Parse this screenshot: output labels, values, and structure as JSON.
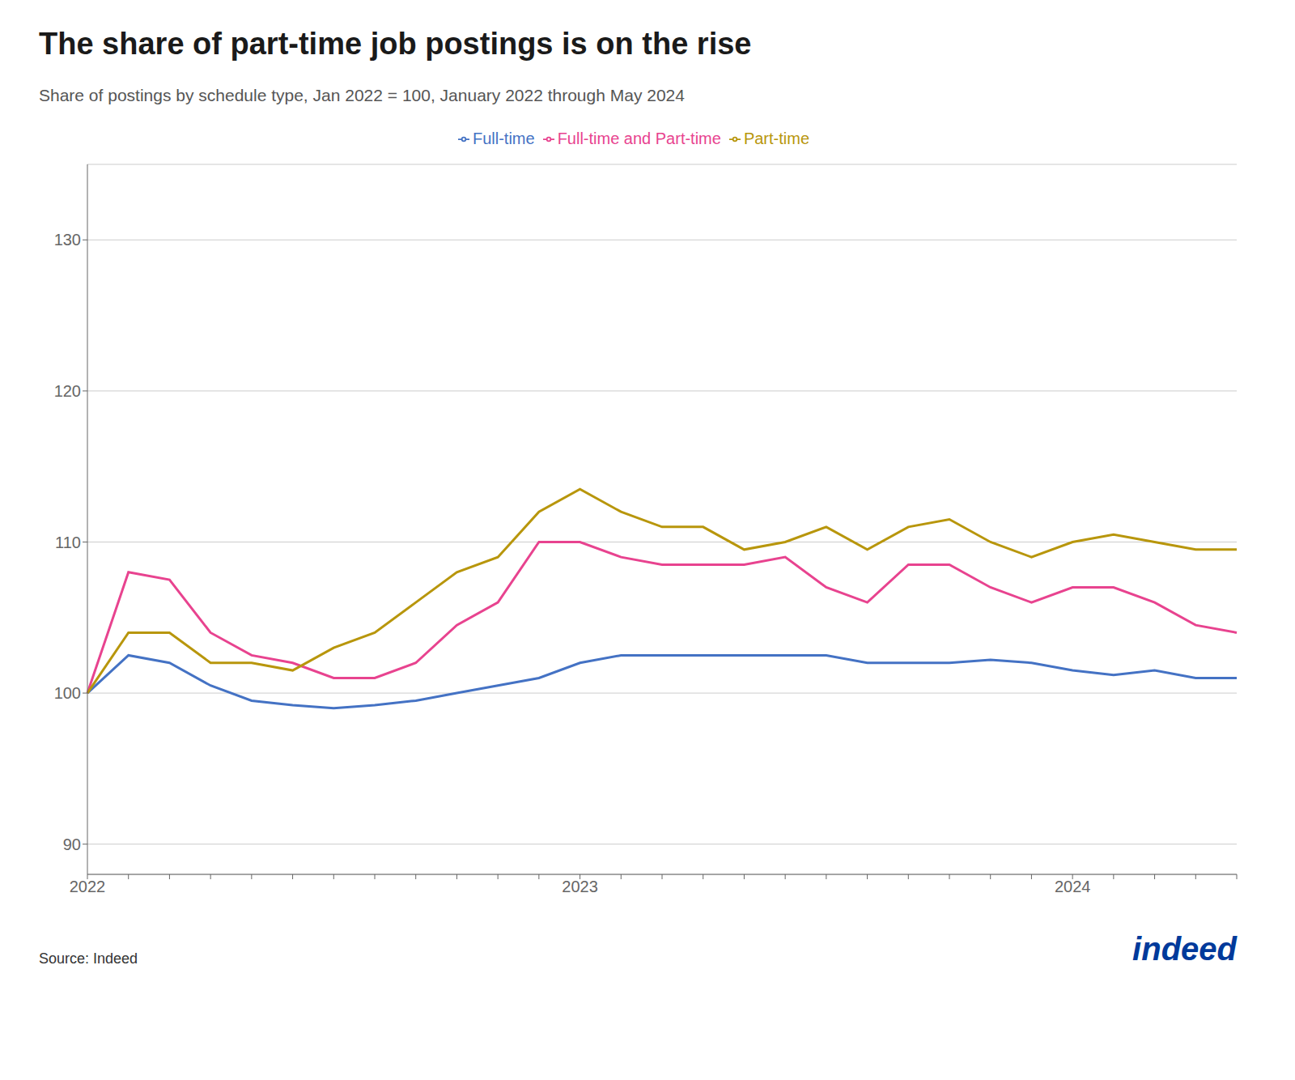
{
  "chart_data": {
    "type": "line",
    "title": "The share of part-time job postings is on the rise",
    "subtitle": "Share of postings by schedule type, Jan 2022 = 100, January 2022 through May 2024",
    "annotations": [
      "Source: Indeed",
      "indeed"
    ],
    "categories": [
      "2022",
      null,
      null,
      null,
      null,
      null,
      null,
      null,
      null,
      null,
      null,
      null,
      "2023",
      null,
      null,
      null,
      null,
      null,
      null,
      null,
      null,
      null,
      null,
      null,
      "2024",
      null,
      null,
      null,
      null
    ],
    "series": [
      {
        "name": "Full-time",
        "color": "#4472C4",
        "values": [
          100,
          102.5,
          102,
          100.5,
          99.5,
          99.2,
          99,
          99.2,
          99.5,
          100,
          100.5,
          101,
          102,
          102.5,
          102.5,
          102.5,
          102.5,
          102.5,
          102.5,
          102,
          102,
          102,
          102.2,
          102,
          101.5,
          101.2,
          101.5,
          101,
          101
        ]
      },
      {
        "name": "Full-time and Part-time",
        "color": "#E8438F",
        "values": [
          100,
          108,
          107.5,
          104,
          102.5,
          102,
          101,
          101,
          102,
          104.5,
          106,
          110,
          110,
          109,
          108.5,
          108.5,
          108.5,
          109,
          107,
          106,
          108.5,
          108.5,
          107,
          106,
          107,
          107,
          106,
          104.5,
          104
        ]
      },
      {
        "name": "Part-time",
        "color": "#B8960C",
        "values": [
          100,
          104,
          104,
          102,
          102,
          101.5,
          103,
          104,
          106,
          108,
          109,
          112,
          113.5,
          112,
          111,
          111,
          109.5,
          110,
          111,
          109.5,
          111,
          111.5,
          110,
          109,
          110,
          110.5,
          110,
          109.5,
          109.5
        ]
      }
    ],
    "ylim": [
      88,
      135
    ],
    "yticks": [
      90,
      100,
      110,
      120,
      130
    ],
    "grid": true,
    "legend": "top"
  }
}
